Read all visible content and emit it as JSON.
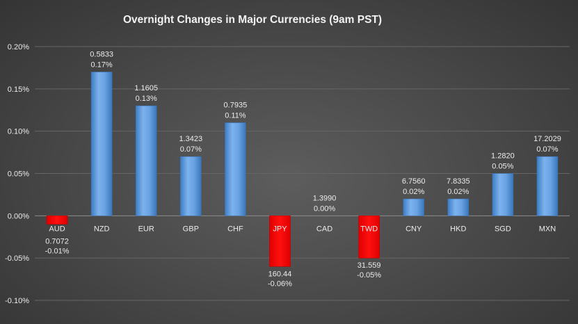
{
  "chart_data": {
    "type": "bar",
    "title": "Overnight Changes in Major Currencies (9am PST)",
    "xlabel": "",
    "ylabel": "",
    "ylim": [
      -0.1,
      0.2
    ],
    "yticks": [
      0.2,
      0.15,
      0.1,
      0.05,
      0.0,
      -0.05,
      -0.1
    ],
    "ytick_labels": [
      "0.20%",
      "0.15%",
      "0.10%",
      "0.05%",
      "0.00%",
      "-0.05%",
      "-0.10%"
    ],
    "grid": true,
    "legend": "none",
    "categories": [
      "AUD",
      "NZD",
      "EUR",
      "GBP",
      "CHF",
      "JPY",
      "CAD",
      "TWD",
      "CNY",
      "HKD",
      "SGD",
      "MXN"
    ],
    "values": [
      -0.01,
      0.17,
      0.13,
      0.07,
      0.11,
      -0.06,
      0.0,
      -0.05,
      0.02,
      0.02,
      0.05,
      0.07
    ],
    "rates": [
      "0.7072",
      "0.5833",
      "1.1605",
      "1.3423",
      "0.7935",
      "160.44",
      "1.3990",
      "31.559",
      "6.7560",
      "7.8335",
      "1.2820",
      "17.2029"
    ],
    "value_labels": [
      "-0.01%",
      "0.17%",
      "0.13%",
      "0.07%",
      "0.11%",
      "-0.06%",
      "0.00%",
      "-0.05%",
      "0.02%",
      "0.02%",
      "0.05%",
      "0.07%"
    ],
    "colors": {
      "positive": "#5b9bd5",
      "negative": "#ff0000"
    }
  }
}
